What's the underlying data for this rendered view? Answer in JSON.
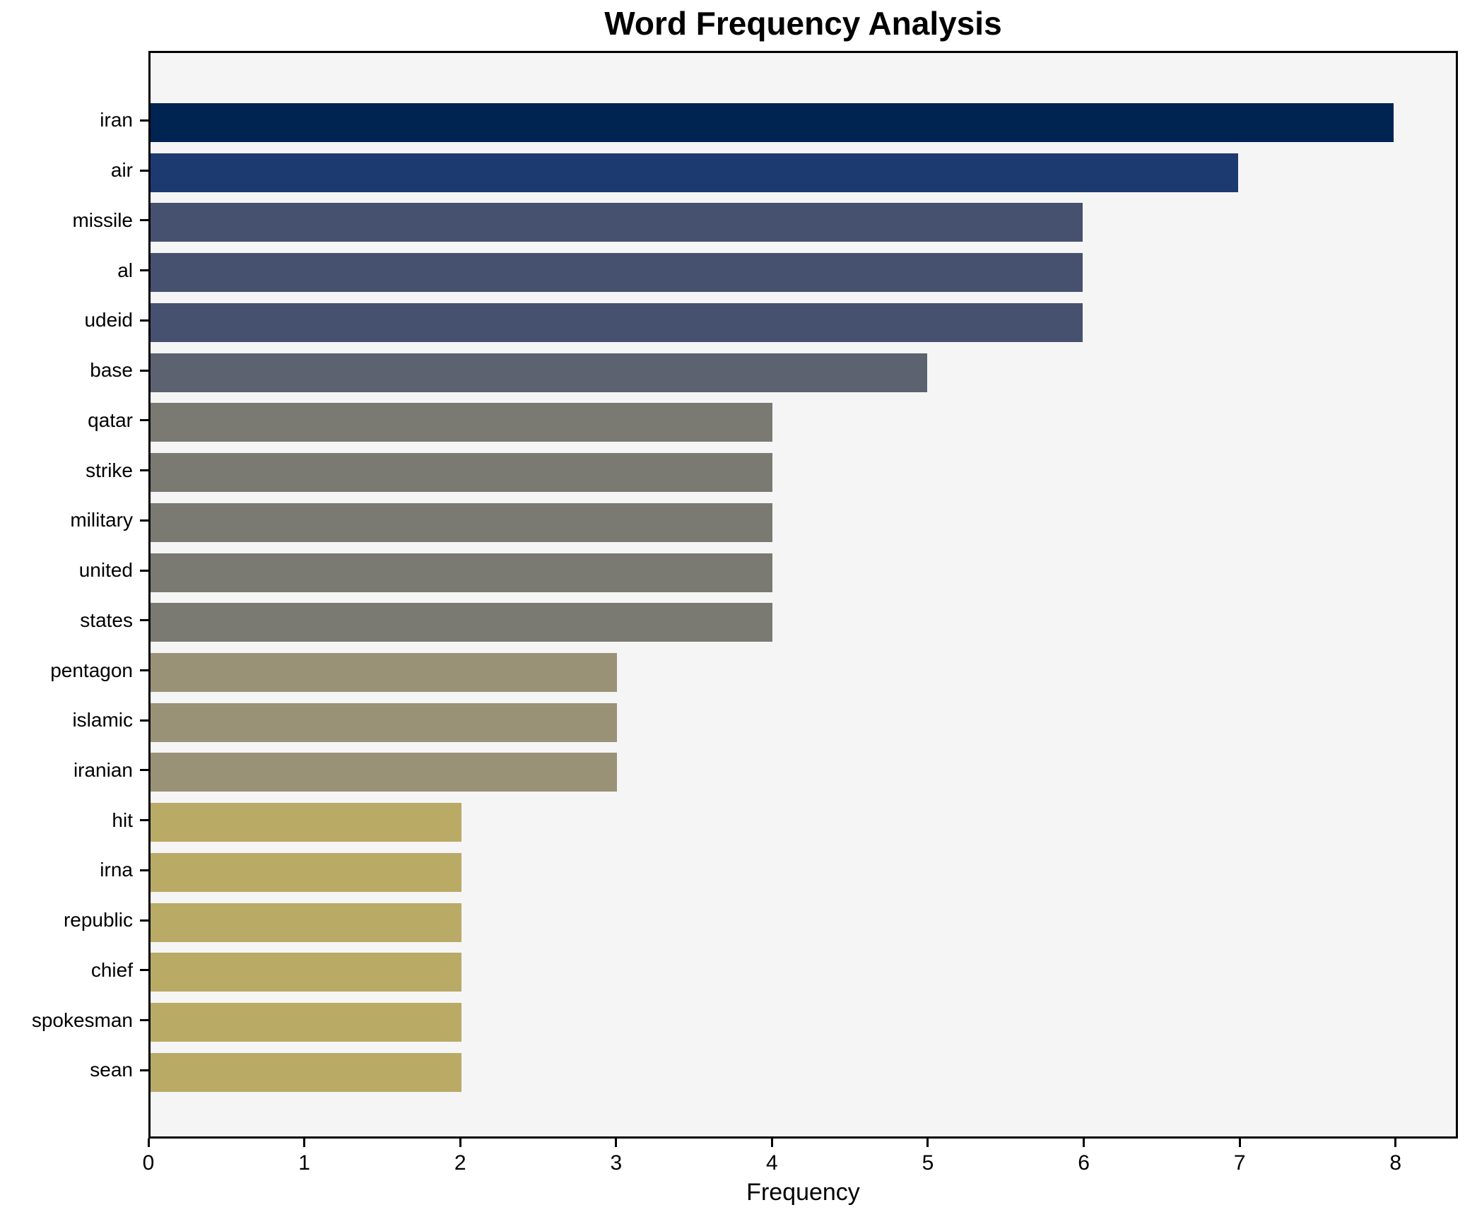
{
  "chart_data": {
    "type": "bar",
    "orientation": "horizontal",
    "title": "Word Frequency Analysis",
    "xlabel": "Frequency",
    "ylabel": "",
    "xlim": [
      0,
      8.4
    ],
    "xticks": [
      0,
      1,
      2,
      3,
      4,
      5,
      6,
      7,
      8
    ],
    "grid": false,
    "legend_position": "none",
    "fig_bg": "#ffffff",
    "plot_bg": "#f5f5f6",
    "spine_color": "#000000",
    "categories": [
      "iran",
      "air",
      "missile",
      "al",
      "udeid",
      "base",
      "qatar",
      "strike",
      "military",
      "united",
      "states",
      "pentagon",
      "islamic",
      "iranian",
      "hit",
      "irna",
      "republic",
      "chief",
      "spokesman",
      "sean"
    ],
    "values": [
      8,
      7,
      6,
      6,
      6,
      5,
      4,
      4,
      4,
      4,
      4,
      3,
      3,
      3,
      2,
      2,
      2,
      2,
      2,
      2
    ],
    "bar_colors": [
      "#002451",
      "#1c3a70",
      "#46516f",
      "#46516f",
      "#46516f",
      "#5c6270",
      "#7b7a72",
      "#7b7a72",
      "#7b7a72",
      "#7b7a72",
      "#7b7a72",
      "#9a9276",
      "#9a9276",
      "#9a9276",
      "#b9aa66",
      "#b9aa66",
      "#b9aa66",
      "#b9aa66",
      "#b9aa66",
      "#b9aa66"
    ]
  }
}
